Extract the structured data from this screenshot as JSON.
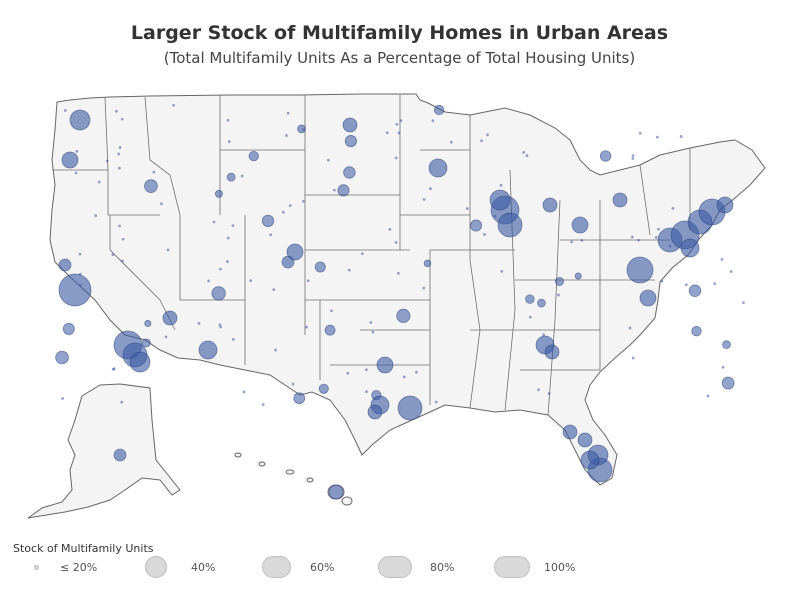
{
  "title": "Larger Stock of Multifamily Homes in Urban Areas",
  "subtitle": "(Total Multifamily Units As a Percentage of Total Housing Units)",
  "legend": {
    "title": "Stock of Multifamily Units",
    "items": [
      {
        "label": "≤ 20%",
        "pct": 20
      },
      {
        "label": "40%",
        "pct": 40
      },
      {
        "label": "60%",
        "pct": 60
      },
      {
        "label": "80%",
        "pct": 80
      },
      {
        "label": "100%",
        "pct": 100
      }
    ]
  },
  "colors": {
    "bubble_fill": "#3b5aa3",
    "bubble_stroke": "#2a427e",
    "land": "#f4f4f4",
    "border": "#666666",
    "legend_symbol": "#d9d9d9"
  }
}
